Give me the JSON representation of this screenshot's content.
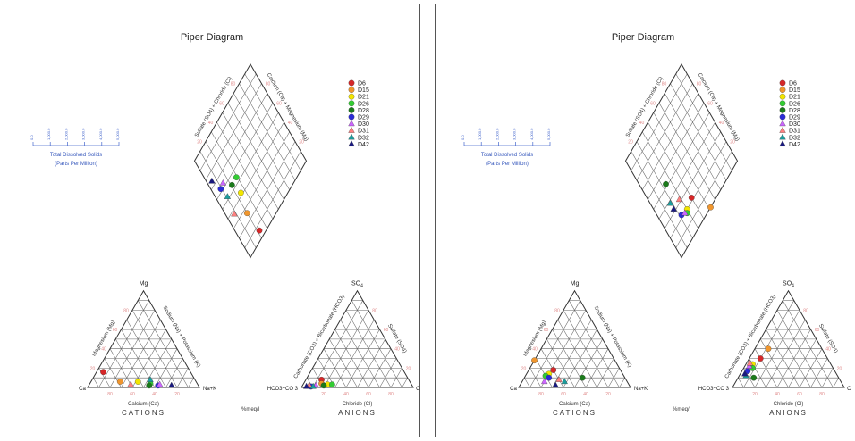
{
  "chart_data": [
    {
      "type": "scatter",
      "title": "Piper Diagram",
      "cation_axes": {
        "apex": "Mg",
        "left": "Ca",
        "right": "Na+K",
        "bottom_label": "Calcium (Ca)",
        "left_label": "Magnesium (Mg)",
        "right_label": "Sodium (Na) + Potassium (K)",
        "caption": "CATIONS"
      },
      "anion_axes": {
        "apex": "SO",
        "apex_sub": "4",
        "left": "HCO3+CO 3",
        "right": "Cl",
        "bottom_label": "Chloride (Cl)",
        "left_label": "Carbonate (CO3) + Bicarbonate (HCO3)",
        "right_label": "Sulfate (SO4)",
        "caption": "ANIONS"
      },
      "diamond_labels": {
        "upper_left": "Sulfate (SO4) + Chloride (Cl)",
        "upper_right": "Calcium (Ca) + Magnesium (Mg)"
      },
      "unit_label": "%meq/l",
      "tds_scale": {
        "title": "Total Dissolved Solids",
        "subtitle": "(Parts Per Million)",
        "ticks": [
          "0.0",
          "1,000.0",
          "2,000.0",
          "3,000.0",
          "4,000.0",
          "5,000.0"
        ]
      },
      "tick_values": [
        "20",
        "40",
        "60",
        "80"
      ],
      "legend_position": "top-right",
      "series": [
        {
          "name": "D6",
          "color": "#d62728",
          "marker": "circle",
          "cation": {
            "ca": 78,
            "mg": 16
          },
          "anion": {
            "cl": 14,
            "so4": 8
          }
        },
        {
          "name": "D15",
          "color": "#f0962e",
          "marker": "circle",
          "cation": {
            "ca": 68,
            "mg": 6
          },
          "anion": {
            "cl": 16,
            "so4": 4
          }
        },
        {
          "name": "D21",
          "color": "#f2e600",
          "marker": "circle",
          "cation": {
            "ca": 52,
            "mg": 6
          },
          "anion": {
            "cl": 22,
            "so4": 3
          }
        },
        {
          "name": "D26",
          "color": "#33cc33",
          "marker": "circle",
          "cation": {
            "ca": 42,
            "mg": 4
          },
          "anion": {
            "cl": 26,
            "so4": 3
          }
        },
        {
          "name": "D28",
          "color": "#1b7a1b",
          "marker": "circle",
          "cation": {
            "ca": 44,
            "mg": 2
          },
          "anion": {
            "cl": 19,
            "so4": 2
          }
        },
        {
          "name": "D29",
          "color": "#2b2bd6",
          "marker": "circle",
          "cation": {
            "ca": 36,
            "mg": 2
          },
          "anion": {
            "cl": 8,
            "so4": 1
          }
        },
        {
          "name": "D30",
          "color": "#cc66ff",
          "marker": "triangle",
          "cation": {
            "ca": 34,
            "mg": 3
          },
          "anion": {
            "cl": 12,
            "so4": 2
          }
        },
        {
          "name": "D31",
          "color": "#ff8080",
          "marker": "triangle",
          "cation": {
            "ca": 60,
            "mg": 3
          },
          "anion": {
            "cl": 6,
            "so4": 2
          }
        },
        {
          "name": "D32",
          "color": "#1a9e9e",
          "marker": "triangle",
          "cation": {
            "ca": 40,
            "mg": 8
          },
          "anion": {
            "cl": 10,
            "so4": 1
          }
        },
        {
          "name": "D42",
          "color": "#1a1a80",
          "marker": "triangle",
          "cation": {
            "ca": 24,
            "mg": 2
          },
          "anion": {
            "cl": 4,
            "so4": 1
          }
        }
      ]
    },
    {
      "type": "scatter",
      "title": "Piper Diagram",
      "cation_axes": {
        "apex": "Mg",
        "left": "Ca",
        "right": "Na+K",
        "bottom_label": "Calcium (Ca)",
        "left_label": "Magnesium (Mg)",
        "right_label": "Sodium (Na) + Potassium (K)",
        "caption": "CATIONS"
      },
      "anion_axes": {
        "apex": "SO",
        "apex_sub": "4",
        "left": "HCO3+CO 3",
        "right": "Cl",
        "bottom_label": "Chloride (Cl)",
        "left_label": "Carbonate (CO3) + Bicarbonate (HCO3)",
        "right_label": "Sulfate (SO4)",
        "caption": "ANIONS"
      },
      "diamond_labels": {
        "upper_left": "Sulfate (SO4) + Chloride (Cl)",
        "upper_right": "Calcium (Ca) + Magnesium (Mg)"
      },
      "unit_label": "%meq/l",
      "tds_scale": {
        "title": "Total Dissolved Solids",
        "subtitle": "(Parts Per Million)",
        "ticks": [
          "0.0",
          "1,000.0",
          "2,000.0",
          "3,000.0",
          "4,000.0",
          "5,000.0"
        ]
      },
      "tick_values": [
        "20",
        "40",
        "60",
        "80"
      ],
      "legend_position": "top-right",
      "series": [
        {
          "name": "D6",
          "color": "#d62728",
          "marker": "circle",
          "cation": {
            "ca": 60,
            "mg": 18
          },
          "anion": {
            "cl": 10,
            "so4": 30
          }
        },
        {
          "name": "D15",
          "color": "#f0962e",
          "marker": "circle",
          "cation": {
            "ca": 72,
            "mg": 28
          },
          "anion": {
            "cl": 12,
            "so4": 40
          }
        },
        {
          "name": "D21",
          "color": "#f2e600",
          "marker": "circle",
          "cation": {
            "ca": 66,
            "mg": 14
          },
          "anion": {
            "cl": 6,
            "so4": 24
          }
        },
        {
          "name": "D26",
          "color": "#33cc33",
          "marker": "circle",
          "cation": {
            "ca": 70,
            "mg": 12
          },
          "anion": {
            "cl": 8,
            "so4": 20
          }
        },
        {
          "name": "D28",
          "color": "#1b7a1b",
          "marker": "circle",
          "cation": {
            "ca": 38,
            "mg": 10
          },
          "anion": {
            "cl": 14,
            "so4": 10
          }
        },
        {
          "name": "D29",
          "color": "#2b2bd6",
          "marker": "circle",
          "cation": {
            "ca": 68,
            "mg": 10
          },
          "anion": {
            "cl": 5,
            "so4": 17
          }
        },
        {
          "name": "D30",
          "color": "#cc66ff",
          "marker": "triangle",
          "cation": {
            "ca": 74,
            "mg": 6
          },
          "anion": {
            "cl": 4,
            "so4": 22
          }
        },
        {
          "name": "D31",
          "color": "#ff8080",
          "marker": "triangle",
          "cation": {
            "ca": 60,
            "mg": 8
          },
          "anion": {
            "cl": 3,
            "so4": 25
          }
        },
        {
          "name": "D32",
          "color": "#1a9e9e",
          "marker": "triangle",
          "cation": {
            "ca": 56,
            "mg": 6
          },
          "anion": {
            "cl": 6,
            "so4": 12
          }
        },
        {
          "name": "D42",
          "color": "#1a1a80",
          "marker": "triangle",
          "cation": {
            "ca": 66,
            "mg": 2
          },
          "anion": {
            "cl": 4,
            "so4": 14
          }
        }
      ]
    }
  ]
}
